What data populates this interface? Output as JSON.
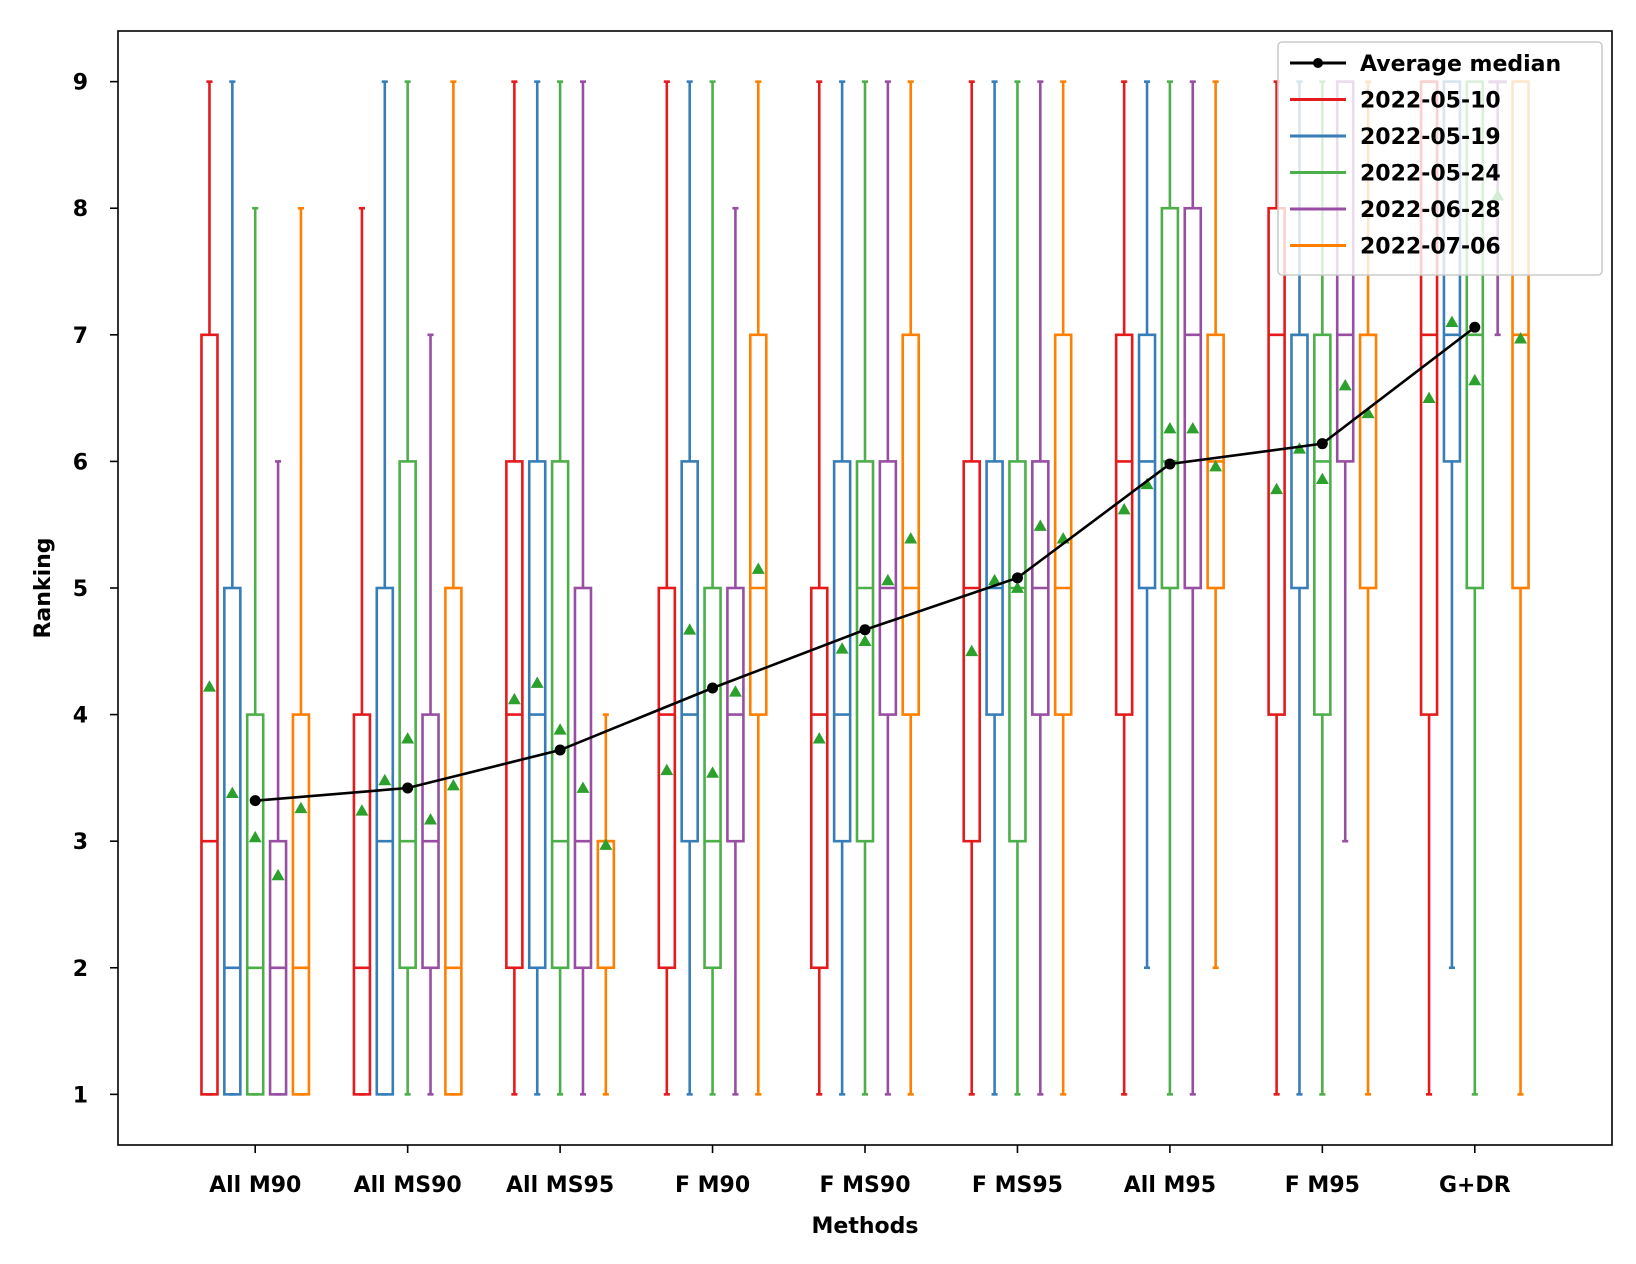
{
  "chart_data": {
    "type": "box",
    "xlabel": "Methods",
    "ylabel": "Ranking",
    "ylim": [
      0.6,
      9.4
    ],
    "yticks": [
      1,
      2,
      3,
      4,
      5,
      6,
      7,
      8,
      9
    ],
    "grid": false,
    "legend_position": "top-right",
    "categories": [
      "All M90",
      "All MS90",
      "All MS95",
      "F M90",
      "F MS90",
      "F MS95",
      "All M95",
      "F M95",
      "G+DR"
    ],
    "average_median": {
      "name": "Average median",
      "color": "#000000",
      "values": [
        3.32,
        3.42,
        3.72,
        4.21,
        4.67,
        5.08,
        5.98,
        6.14,
        7.06
      ]
    },
    "mean_marker_color": "#2ca02c",
    "series": [
      {
        "name": "2022-05-10",
        "color": "#e41a1c",
        "boxes": [
          {
            "whislo": 1,
            "q1": 1,
            "med": 3,
            "q3": 7,
            "whishi": 9,
            "mean": 4.22
          },
          {
            "whislo": 1,
            "q1": 1,
            "med": 2,
            "q3": 4,
            "whishi": 8,
            "mean": 3.24
          },
          {
            "whislo": 1,
            "q1": 2,
            "med": 4,
            "q3": 6,
            "whishi": 9,
            "mean": 4.12
          },
          {
            "whislo": 1,
            "q1": 2,
            "med": 4,
            "q3": 5,
            "whishi": 9,
            "mean": 3.56
          },
          {
            "whislo": 1,
            "q1": 2,
            "med": 4,
            "q3": 5,
            "whishi": 9,
            "mean": 3.81
          },
          {
            "whislo": 1,
            "q1": 3,
            "med": 5,
            "q3": 6,
            "whishi": 9,
            "mean": 4.5
          },
          {
            "whislo": 1,
            "q1": 4,
            "med": 6,
            "q3": 7,
            "whishi": 9,
            "mean": 5.62
          },
          {
            "whislo": 1,
            "q1": 4,
            "med": 7,
            "q3": 8,
            "whishi": 9,
            "mean": 5.78
          },
          {
            "whislo": 1,
            "q1": 4,
            "med": 7,
            "q3": 9,
            "whishi": 9,
            "mean": 6.5
          }
        ]
      },
      {
        "name": "2022-05-19",
        "color": "#377eb8",
        "boxes": [
          {
            "whislo": 1,
            "q1": 1,
            "med": 2,
            "q3": 5,
            "whishi": 9,
            "mean": 3.38
          },
          {
            "whislo": 1,
            "q1": 1,
            "med": 3,
            "q3": 5,
            "whishi": 9,
            "mean": 3.48
          },
          {
            "whislo": 1,
            "q1": 2,
            "med": 4,
            "q3": 6,
            "whishi": 9,
            "mean": 4.25
          },
          {
            "whislo": 1,
            "q1": 3,
            "med": 4,
            "q3": 6,
            "whishi": 9,
            "mean": 4.67
          },
          {
            "whislo": 1,
            "q1": 3,
            "med": 4,
            "q3": 6,
            "whishi": 9,
            "mean": 4.52
          },
          {
            "whislo": 1,
            "q1": 4,
            "med": 5,
            "q3": 6,
            "whishi": 9,
            "mean": 5.06
          },
          {
            "whislo": 2,
            "q1": 5,
            "med": 6,
            "q3": 7,
            "whishi": 9,
            "mean": 5.82
          },
          {
            "whislo": 1,
            "q1": 5,
            "med": 7,
            "q3": 7,
            "whishi": 9,
            "mean": 6.1
          },
          {
            "whislo": 2,
            "q1": 6,
            "med": 7,
            "q3": 9,
            "whishi": 9,
            "mean": 7.1
          }
        ]
      },
      {
        "name": "2022-05-24",
        "color": "#4daf4a",
        "boxes": [
          {
            "whislo": 1,
            "q1": 1,
            "med": 2,
            "q3": 4,
            "whishi": 8,
            "mean": 3.03
          },
          {
            "whislo": 1,
            "q1": 2,
            "med": 3,
            "q3": 6,
            "whishi": 9,
            "mean": 3.81
          },
          {
            "whislo": 1,
            "q1": 2,
            "med": 3,
            "q3": 6,
            "whishi": 9,
            "mean": 3.88
          },
          {
            "whislo": 1,
            "q1": 2,
            "med": 3,
            "q3": 5,
            "whishi": 9,
            "mean": 3.54
          },
          {
            "whislo": 1,
            "q1": 3,
            "med": 5,
            "q3": 6,
            "whishi": 9,
            "mean": 4.58
          },
          {
            "whislo": 1,
            "q1": 3,
            "med": 5,
            "q3": 6,
            "whishi": 9,
            "mean": 5.0
          },
          {
            "whislo": 1,
            "q1": 5,
            "med": 6,
            "q3": 8,
            "whishi": 9,
            "mean": 6.26
          },
          {
            "whislo": 1,
            "q1": 4,
            "med": 6,
            "q3": 7,
            "whishi": 9,
            "mean": 5.86
          },
          {
            "whislo": 1,
            "q1": 5,
            "med": 7,
            "q3": 9,
            "whishi": 9,
            "mean": 6.64
          }
        ]
      },
      {
        "name": "2022-06-28",
        "color": "#984ea3",
        "boxes": [
          {
            "whislo": 1,
            "q1": 1,
            "med": 2,
            "q3": 3,
            "whishi": 6,
            "mean": 2.73
          },
          {
            "whislo": 1,
            "q1": 2,
            "med": 3,
            "q3": 4,
            "whishi": 7,
            "mean": 3.17
          },
          {
            "whislo": 1,
            "q1": 2,
            "med": 3,
            "q3": 5,
            "whishi": 9,
            "mean": 3.42
          },
          {
            "whislo": 1,
            "q1": 3,
            "med": 4,
            "q3": 5,
            "whishi": 8,
            "mean": 4.18
          },
          {
            "whislo": 1,
            "q1": 4,
            "med": 5,
            "q3": 6,
            "whishi": 9,
            "mean": 5.06
          },
          {
            "whislo": 1,
            "q1": 4,
            "med": 5,
            "q3": 6,
            "whishi": 9,
            "mean": 5.49
          },
          {
            "whislo": 1,
            "q1": 5,
            "med": 7,
            "q3": 8,
            "whishi": 9,
            "mean": 6.26
          },
          {
            "whislo": 3,
            "q1": 6,
            "med": 7,
            "q3": 9,
            "whishi": 9,
            "mean": 6.6
          },
          {
            "whislo": 7,
            "q1": 9,
            "med": 9,
            "q3": 9,
            "whishi": 9,
            "mean": 8.1
          }
        ]
      },
      {
        "name": "2022-07-06",
        "color": "#ff7f00",
        "boxes": [
          {
            "whislo": 1,
            "q1": 1,
            "med": 2,
            "q3": 4,
            "whishi": 8,
            "mean": 3.26
          },
          {
            "whislo": 1,
            "q1": 1,
            "med": 2,
            "q3": 5,
            "whishi": 9,
            "mean": 3.44
          },
          {
            "whislo": 1,
            "q1": 2,
            "med": 3,
            "q3": 3,
            "whishi": 4,
            "mean": 2.97
          },
          {
            "whislo": 1,
            "q1": 4,
            "med": 5,
            "q3": 7,
            "whishi": 9,
            "mean": 5.15
          },
          {
            "whislo": 1,
            "q1": 4,
            "med": 5,
            "q3": 7,
            "whishi": 9,
            "mean": 5.39
          },
          {
            "whislo": 1,
            "q1": 4,
            "med": 5,
            "q3": 7,
            "whishi": 9,
            "mean": 5.39
          },
          {
            "whislo": 2,
            "q1": 5,
            "med": 6,
            "q3": 7,
            "whishi": 9,
            "mean": 5.96
          },
          {
            "whislo": 1,
            "q1": 5,
            "med": 7,
            "q3": 7,
            "whishi": 9,
            "mean": 6.38
          },
          {
            "whislo": 1,
            "q1": 5,
            "med": 7,
            "q3": 9,
            "whishi": 9,
            "mean": 6.97
          }
        ]
      }
    ]
  }
}
